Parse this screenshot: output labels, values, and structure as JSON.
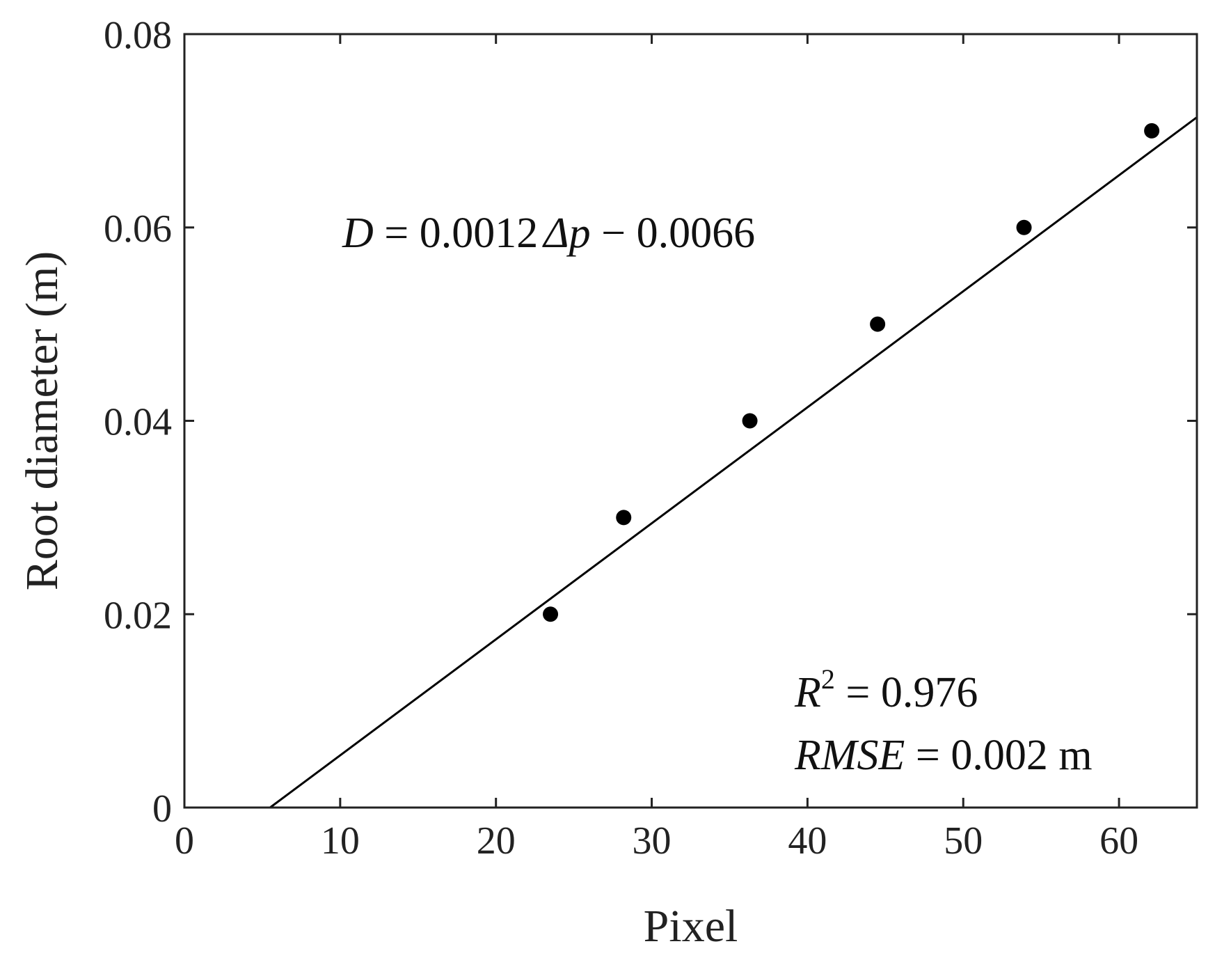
{
  "chart_data": {
    "type": "scatter",
    "xlabel": "Pixel",
    "ylabel": "Root diameter (m)",
    "xlim": [
      0,
      65
    ],
    "ylim": [
      0,
      0.08
    ],
    "xticks": [
      0,
      10,
      20,
      30,
      40,
      50,
      60
    ],
    "yticks": [
      0,
      0.02,
      0.04,
      0.06,
      0.08
    ],
    "xtick_labels": [
      "0",
      "10",
      "20",
      "30",
      "40",
      "50",
      "60"
    ],
    "ytick_labels": [
      "0",
      "0.02",
      "0.04",
      "0.06",
      "0.08"
    ],
    "grid": false,
    "series": [
      {
        "x": [
          23.5,
          28.2,
          36.3,
          44.5,
          53.9,
          62.1
        ],
        "y": [
          0.02,
          0.03,
          0.04,
          0.05,
          0.06,
          0.07
        ]
      }
    ],
    "fit_line": {
      "slope": 0.0012,
      "intercept": -0.0066
    },
    "annotations": {
      "equation": {
        "lhs": "D",
        "eq": " = 0.0012",
        "delta": "Δp",
        "rest": " − 0.0066"
      },
      "r2": {
        "symbol": "R",
        "sup": "2",
        "value": " = 0.976"
      },
      "rmse": {
        "symbol": "RMSE",
        "value": " = 0.002 m"
      }
    },
    "colors": {
      "marker": "#000000",
      "line": "#000000",
      "axis": "#222222"
    }
  }
}
